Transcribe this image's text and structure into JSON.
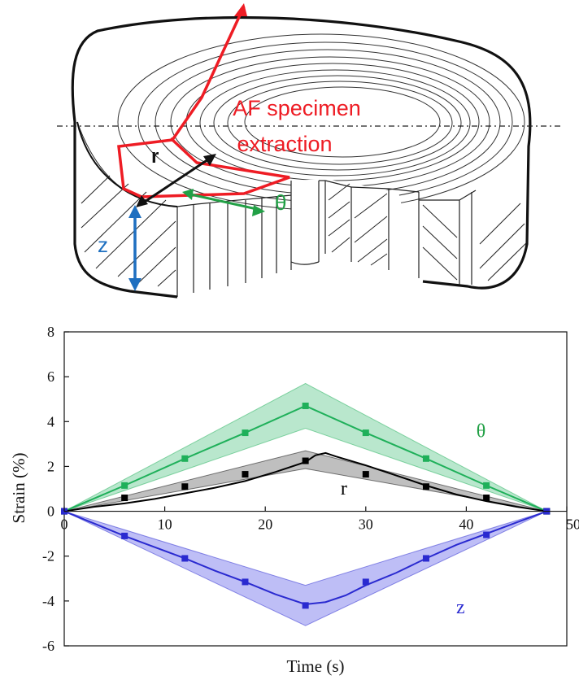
{
  "diagram": {
    "title_line1": "AF specimen",
    "title_line2": "extraction",
    "label_r": "r",
    "label_theta": "θ",
    "label_z": "z",
    "colors": {
      "extraction": "#ee1c24",
      "r": "#111111",
      "theta": "#22a046",
      "z": "#1e6fc0",
      "outline": "#111111"
    }
  },
  "chart_data": {
    "type": "line",
    "title": "",
    "xlabel": "Time (s)",
    "ylabel": "Strain (%)",
    "xlim": [
      0,
      50
    ],
    "ylim": [
      -6,
      8
    ],
    "xticks": [
      0,
      10,
      20,
      30,
      40,
      50
    ],
    "yticks": [
      -6,
      -4,
      -2,
      0,
      2,
      4,
      6,
      8
    ],
    "grid": false,
    "series": [
      {
        "name": "θ",
        "color": "#1fb05a",
        "band_color": "#7fd3a4",
        "points_x": [
          0,
          6,
          12,
          18,
          24,
          30,
          36,
          42,
          48
        ],
        "points_y": [
          0,
          1.15,
          2.35,
          3.5,
          4.7,
          3.5,
          2.35,
          1.15,
          0
        ],
        "line_x": [
          0,
          6,
          12,
          18,
          24,
          30,
          36,
          42,
          48
        ],
        "line_y": [
          0,
          1.15,
          2.35,
          3.5,
          4.7,
          3.5,
          2.35,
          1.15,
          0
        ],
        "band_upper": [
          [
            0,
            0
          ],
          [
            24,
            5.7
          ],
          [
            48,
            0
          ]
        ],
        "band_lower": [
          [
            0,
            0
          ],
          [
            24,
            3.7
          ],
          [
            48,
            0
          ]
        ]
      },
      {
        "name": "r",
        "color": "#000000",
        "band_color": "#8a8a8a",
        "points_x": [
          0,
          6,
          12,
          18,
          24,
          30,
          36,
          42,
          48
        ],
        "points_y": [
          0,
          0.6,
          1.1,
          1.65,
          2.25,
          1.65,
          1.1,
          0.6,
          0
        ],
        "line_x": [
          0,
          3,
          6,
          9,
          12,
          15,
          18,
          21,
          24,
          25,
          26,
          27,
          30,
          33,
          36,
          39,
          42,
          45,
          48
        ],
        "line_y": [
          0,
          0.2,
          0.35,
          0.55,
          0.8,
          1.05,
          1.35,
          1.75,
          2.2,
          2.5,
          2.6,
          2.45,
          2.05,
          1.6,
          1.15,
          0.75,
          0.45,
          0.2,
          0
        ],
        "band_upper": [
          [
            0,
            0
          ],
          [
            24,
            2.7
          ],
          [
            48,
            0
          ]
        ],
        "band_lower": [
          [
            0,
            0
          ],
          [
            24,
            1.9
          ],
          [
            48,
            0
          ]
        ]
      },
      {
        "name": "z",
        "color": "#2a2ad0",
        "band_color": "#8888ee",
        "points_x": [
          0,
          6,
          12,
          18,
          24,
          30,
          36,
          42,
          48
        ],
        "points_y": [
          0,
          -1.1,
          -2.1,
          -3.15,
          -4.2,
          -3.15,
          -2.1,
          -1.05,
          0
        ],
        "line_x": [
          0,
          3,
          6,
          9,
          12,
          15,
          18,
          21,
          24,
          26,
          28,
          30,
          33,
          36,
          39,
          42,
          45,
          48
        ],
        "line_y": [
          0,
          -0.55,
          -1.1,
          -1.6,
          -2.1,
          -2.65,
          -3.15,
          -3.7,
          -4.15,
          -4.05,
          -3.75,
          -3.3,
          -2.75,
          -2.1,
          -1.5,
          -1.0,
          -0.5,
          0
        ],
        "band_upper": [
          [
            0,
            0
          ],
          [
            24,
            -3.3
          ],
          [
            48,
            0
          ]
        ],
        "band_lower": [
          [
            0,
            0
          ],
          [
            24,
            -5.1
          ],
          [
            48,
            0
          ]
        ]
      }
    ],
    "annotations": [
      {
        "text": "θ",
        "x": 41,
        "y": 3.3,
        "color": "#22a046"
      },
      {
        "text": "r",
        "x": 27.5,
        "y": 0.75,
        "color": "#000000"
      },
      {
        "text": "z",
        "x": 39,
        "y": -4.55,
        "color": "#2a2ad0"
      }
    ]
  }
}
